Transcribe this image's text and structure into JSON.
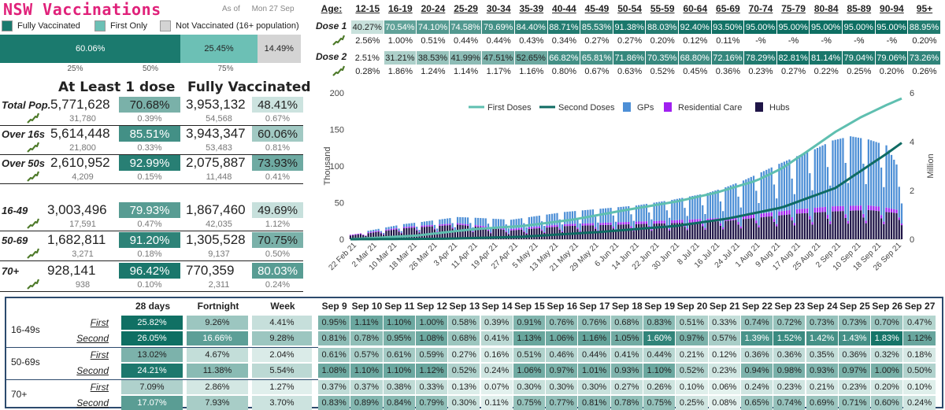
{
  "header": {
    "title": "NSW Vaccinations",
    "as_of_label": "As of",
    "date": "Mon 27 Sep"
  },
  "legend_top": [
    {
      "label": "Fully Vaccinated",
      "color": "#1b7a6e"
    },
    {
      "label": "First Only",
      "color": "#6cc0b5"
    },
    {
      "label": "Not Vaccinated (16+ population)",
      "color": "#d4d4d4"
    }
  ],
  "population_bar": {
    "segments": [
      {
        "label": "60.06%",
        "value": 60.06,
        "color": "#1b7a6e",
        "text_color": "#ffffff"
      },
      {
        "label": "25.45%",
        "value": 25.45,
        "color": "#6cc0b5",
        "text_color": "#222222"
      },
      {
        "label": "14.49%",
        "value": 14.49,
        "color": "#d4d4d4",
        "text_color": "#222222"
      }
    ],
    "ticks": [
      {
        "label": "25%",
        "value": 25
      },
      {
        "label": "50%",
        "value": 50
      },
      {
        "label": "75%",
        "value": 75
      }
    ]
  },
  "summary": {
    "col_headers": [
      "At Least 1 dose",
      "Fully Vaccinated"
    ],
    "rows": [
      {
        "label": "Total Pop.",
        "dose1": "5,771,628",
        "dose1_pct": "70.68%",
        "dose1_pct_val": 70.68,
        "dose1_day": "31,780",
        "dose1_day_pct": "0.39%",
        "full": "3,953,132",
        "full_pct": "48.41%",
        "full_pct_val": 48.41,
        "full_day": "54,568",
        "full_day_pct": "0.67%"
      },
      {
        "label": "Over 16s",
        "dose1": "5,614,448",
        "dose1_pct": "85.51%",
        "dose1_pct_val": 85.51,
        "dose1_day": "21,800",
        "dose1_day_pct": "0.33%",
        "full": "3,943,347",
        "full_pct": "60.06%",
        "full_pct_val": 60.06,
        "full_day": "53,483",
        "full_day_pct": "0.81%"
      },
      {
        "label": "Over 50s",
        "dose1": "2,610,952",
        "dose1_pct": "92.99%",
        "dose1_pct_val": 92.99,
        "dose1_day": "4,209",
        "dose1_day_pct": "0.15%",
        "full": "2,075,887",
        "full_pct": "73.93%",
        "full_pct_val": 73.93,
        "full_day": "11,448",
        "full_day_pct": "0.41%"
      },
      {
        "label": "16-49",
        "dose1": "3,003,496",
        "dose1_pct": "79.93%",
        "dose1_pct_val": 79.93,
        "dose1_day": "17,591",
        "dose1_day_pct": "0.47%",
        "full": "1,867,460",
        "full_pct": "49.69%",
        "full_pct_val": 49.69,
        "full_day": "42,035",
        "full_day_pct": "1.12%"
      },
      {
        "label": "50-69",
        "dose1": "1,682,811",
        "dose1_pct": "91.20%",
        "dose1_pct_val": 91.2,
        "dose1_day": "3,271",
        "dose1_day_pct": "0.18%",
        "full": "1,305,528",
        "full_pct": "70.75%",
        "full_pct_val": 70.75,
        "full_day": "9,137",
        "full_day_pct": "0.50%"
      },
      {
        "label": "70+",
        "dose1": "928,141",
        "dose1_pct": "96.42%",
        "dose1_pct_val": 96.42,
        "dose1_day": "938",
        "dose1_day_pct": "0.10%",
        "full": "770,359",
        "full_pct": "80.03%",
        "full_pct_val": 80.03,
        "full_day": "2,311",
        "full_day_pct": "0.24%"
      }
    ]
  },
  "age_table": {
    "age_label": "Age:",
    "dose1_label": "Dose 1",
    "dose2_label": "Dose 2",
    "ages": [
      "12-15",
      "16-19",
      "20-24",
      "25-29",
      "30-34",
      "35-39",
      "40-44",
      "45-49",
      "50-54",
      "55-59",
      "60-64",
      "65-69",
      "70-74",
      "75-79",
      "80-84",
      "85-89",
      "90-94",
      "95+"
    ],
    "dose1": [
      "40.27%",
      "70.54%",
      "74.10%",
      "74.58%",
      "79.69%",
      "84.40%",
      "88.71%",
      "85.53%",
      "91.38%",
      "88.03%",
      "92.40%",
      "93.50%",
      "95.00%",
      "95.00%",
      "95.00%",
      "95.00%",
      "95.00%",
      "88.95%"
    ],
    "dose1_val": [
      40.27,
      70.54,
      74.1,
      74.58,
      79.69,
      84.4,
      88.71,
      85.53,
      91.38,
      88.03,
      92.4,
      93.5,
      95.0,
      95.0,
      95.0,
      95.0,
      95.0,
      88.95
    ],
    "dose1_daily": [
      "2.56%",
      "1.00%",
      "0.51%",
      "0.44%",
      "0.44%",
      "0.43%",
      "0.34%",
      "0.27%",
      "0.27%",
      "0.20%",
      "0.12%",
      "0.11%",
      "-%",
      "-%",
      "-%",
      "-%",
      "-%",
      "0.20%"
    ],
    "dose2": [
      "2.51%",
      "31.21%",
      "38.53%",
      "41.99%",
      "47.51%",
      "52.65%",
      "66.82%",
      "65.81%",
      "71.86%",
      "70.35%",
      "68.80%",
      "72.16%",
      "78.29%",
      "82.81%",
      "81.14%",
      "79.04%",
      "79.06%",
      "73.26%"
    ],
    "dose2_val": [
      2.51,
      31.21,
      38.53,
      41.99,
      47.51,
      52.65,
      66.82,
      65.81,
      71.86,
      70.35,
      68.8,
      72.16,
      78.29,
      82.81,
      81.14,
      79.04,
      79.06,
      73.26
    ],
    "dose2_daily": [
      "0.28%",
      "1.86%",
      "1.24%",
      "1.14%",
      "1.17%",
      "1.16%",
      "0.80%",
      "0.67%",
      "0.63%",
      "0.52%",
      "0.45%",
      "0.36%",
      "0.23%",
      "0.27%",
      "0.22%",
      "0.25%",
      "0.20%",
      "0.26%"
    ]
  },
  "chart_data": {
    "type": "bar",
    "legend_position": "top",
    "grid": false,
    "ylabel": "Thousand",
    "y2label": "Million",
    "ylim": [
      0,
      200
    ],
    "y2lim": [
      0,
      6
    ],
    "yticks": [
      0,
      50,
      100,
      150,
      200
    ],
    "y2ticks": [
      0,
      2,
      4,
      6
    ],
    "date_range": [
      "2021-02-22",
      "2021-09-26"
    ],
    "x_tick_labels": [
      "22 Feb 21",
      "2 Mar 21",
      "10 Mar 21",
      "18 Mar 21",
      "26 Mar 21",
      "3 Apr 21",
      "11 Apr 21",
      "19 Apr 21",
      "27 Apr 21",
      "5 May 21",
      "13 May 21",
      "21 May 21",
      "29 May 21",
      "6 Jun 21",
      "14 Jun 21",
      "22 Jun 21",
      "30 Jun 21",
      "8 Jul 21",
      "16 Jul 21",
      "24 Jul 21",
      "1 Aug 21",
      "9 Aug 21",
      "17 Aug 21",
      "25 Aug 21",
      "2 Sep 21",
      "10 Sep 21",
      "18 Sep 21",
      "26 Sep 21"
    ],
    "series": [
      {
        "name": "First Doses",
        "kind": "line",
        "axis": "right",
        "color": "#5fbfb0",
        "points": [
          [
            "2021-02-22",
            0.0
          ],
          [
            "2021-03-20",
            0.15
          ],
          [
            "2021-04-10",
            0.4
          ],
          [
            "2021-05-01",
            0.55
          ],
          [
            "2021-05-20",
            0.8
          ],
          [
            "2021-06-10",
            1.2
          ],
          [
            "2021-06-30",
            1.55
          ],
          [
            "2021-07-15",
            1.9
          ],
          [
            "2021-07-31",
            2.4
          ],
          [
            "2021-08-10",
            2.9
          ],
          [
            "2021-08-20",
            3.6
          ],
          [
            "2021-08-31",
            4.4
          ],
          [
            "2021-09-10",
            5.0
          ],
          [
            "2021-09-20",
            5.5
          ],
          [
            "2021-09-26",
            5.77
          ]
        ]
      },
      {
        "name": "Second Doses",
        "kind": "line",
        "axis": "right",
        "color": "#0f6b63",
        "points": [
          [
            "2021-02-22",
            0.0
          ],
          [
            "2021-03-31",
            0.02
          ],
          [
            "2021-04-30",
            0.1
          ],
          [
            "2021-05-31",
            0.3
          ],
          [
            "2021-06-30",
            0.55
          ],
          [
            "2021-07-20",
            0.85
          ],
          [
            "2021-08-10",
            1.3
          ],
          [
            "2021-08-31",
            2.1
          ],
          [
            "2021-09-10",
            2.8
          ],
          [
            "2021-09-20",
            3.5
          ],
          [
            "2021-09-26",
            3.95
          ]
        ]
      },
      {
        "name": "GPs",
        "kind": "bar",
        "axis": "left",
        "color": "#4d8fd6",
        "points": [
          [
            "2021-03-01",
            2
          ],
          [
            "2021-03-22",
            5
          ],
          [
            "2021-04-12",
            10
          ],
          [
            "2021-05-03",
            14
          ],
          [
            "2021-05-24",
            18
          ],
          [
            "2021-06-14",
            22
          ],
          [
            "2021-06-28",
            28
          ],
          [
            "2021-07-12",
            35
          ],
          [
            "2021-07-26",
            48
          ],
          [
            "2021-08-09",
            65
          ],
          [
            "2021-08-23",
            80
          ],
          [
            "2021-08-30",
            90
          ],
          [
            "2021-09-06",
            95
          ],
          [
            "2021-09-13",
            90
          ],
          [
            "2021-09-20",
            85
          ],
          [
            "2021-09-26",
            50
          ]
        ]
      },
      {
        "name": "Residential Care",
        "kind": "bar",
        "axis": "left",
        "color": "#a020f0",
        "points": [
          [
            "2021-02-22",
            1
          ],
          [
            "2021-03-22",
            2
          ],
          [
            "2021-04-26",
            2
          ],
          [
            "2021-05-31",
            3
          ],
          [
            "2021-07-05",
            4
          ],
          [
            "2021-08-02",
            5
          ],
          [
            "2021-08-30",
            7
          ],
          [
            "2021-09-20",
            6
          ],
          [
            "2021-09-26",
            4
          ]
        ]
      },
      {
        "name": "Hubs",
        "kind": "bar",
        "axis": "left",
        "color": "#1f1547",
        "points": [
          [
            "2021-02-22",
            5
          ],
          [
            "2021-03-15",
            15
          ],
          [
            "2021-04-05",
            20
          ],
          [
            "2021-04-26",
            12
          ],
          [
            "2021-05-17",
            18
          ],
          [
            "2021-06-07",
            20
          ],
          [
            "2021-06-28",
            22
          ],
          [
            "2021-07-19",
            25
          ],
          [
            "2021-08-02",
            30
          ],
          [
            "2021-08-16",
            35
          ],
          [
            "2021-08-30",
            38
          ],
          [
            "2021-09-13",
            40
          ],
          [
            "2021-09-26",
            35
          ]
        ]
      }
    ]
  },
  "daily_table": {
    "headers": [
      "28 days",
      "Fortnight",
      "Week"
    ],
    "days": [
      "Sep 9",
      "Sep 10",
      "Sep 11",
      "Sep 12",
      "Sep 13",
      "Sep 14",
      "Sep 15",
      "Sep 16",
      "Sep 17",
      "Sep 18",
      "Sep 19",
      "Sep 20",
      "Sep 21",
      "Sep 22",
      "Sep 23",
      "Sep 24",
      "Sep 25",
      "Sep 26",
      "Sep 27"
    ],
    "groups": [
      {
        "label": "16-49s",
        "rows": [
          {
            "type": "First",
            "summary": [
              "25.82%",
              "9.26%",
              "4.41%"
            ],
            "summary_val": [
              25.82,
              9.26,
              4.41
            ],
            "daily": [
              "0.95%",
              "1.11%",
              "1.10%",
              "1.00%",
              "0.58%",
              "0.39%",
              "0.91%",
              "0.76%",
              "0.76%",
              "0.68%",
              "0.83%",
              "0.51%",
              "0.33%",
              "0.74%",
              "0.72%",
              "0.73%",
              "0.73%",
              "0.70%",
              "0.47%"
            ],
            "daily_val": [
              0.95,
              1.11,
              1.1,
              1.0,
              0.58,
              0.39,
              0.91,
              0.76,
              0.76,
              0.68,
              0.83,
              0.51,
              0.33,
              0.74,
              0.72,
              0.73,
              0.73,
              0.7,
              0.47
            ]
          },
          {
            "type": "Second",
            "summary": [
              "26.05%",
              "16.66%",
              "9.28%"
            ],
            "summary_val": [
              26.05,
              16.66,
              9.28
            ],
            "daily": [
              "0.81%",
              "0.78%",
              "0.95%",
              "1.08%",
              "0.68%",
              "0.41%",
              "1.13%",
              "1.06%",
              "1.16%",
              "1.05%",
              "1.60%",
              "0.97%",
              "0.57%",
              "1.39%",
              "1.52%",
              "1.42%",
              "1.43%",
              "1.83%",
              "1.12%"
            ],
            "daily_val": [
              0.81,
              0.78,
              0.95,
              1.08,
              0.68,
              0.41,
              1.13,
              1.06,
              1.16,
              1.05,
              1.6,
              0.97,
              0.57,
              1.39,
              1.52,
              1.42,
              1.43,
              1.83,
              1.12
            ]
          }
        ]
      },
      {
        "label": "50-69s",
        "rows": [
          {
            "type": "First",
            "summary": [
              "13.02%",
              "4.67%",
              "2.04%"
            ],
            "summary_val": [
              13.02,
              4.67,
              2.04
            ],
            "daily": [
              "0.61%",
              "0.57%",
              "0.61%",
              "0.59%",
              "0.27%",
              "0.16%",
              "0.51%",
              "0.46%",
              "0.44%",
              "0.41%",
              "0.44%",
              "0.21%",
              "0.12%",
              "0.36%",
              "0.36%",
              "0.35%",
              "0.36%",
              "0.32%",
              "0.18%"
            ],
            "daily_val": [
              0.61,
              0.57,
              0.61,
              0.59,
              0.27,
              0.16,
              0.51,
              0.46,
              0.44,
              0.41,
              0.44,
              0.21,
              0.12,
              0.36,
              0.36,
              0.35,
              0.36,
              0.32,
              0.18
            ]
          },
          {
            "type": "Second",
            "summary": [
              "24.21%",
              "11.38%",
              "5.54%"
            ],
            "summary_val": [
              24.21,
              11.38,
              5.54
            ],
            "daily": [
              "1.08%",
              "1.10%",
              "1.10%",
              "1.12%",
              "0.52%",
              "0.24%",
              "1.06%",
              "0.97%",
              "1.01%",
              "0.93%",
              "1.10%",
              "0.52%",
              "0.23%",
              "0.94%",
              "0.98%",
              "0.93%",
              "0.97%",
              "1.00%",
              "0.50%"
            ],
            "daily_val": [
              1.08,
              1.1,
              1.1,
              1.12,
              0.52,
              0.24,
              1.06,
              0.97,
              1.01,
              0.93,
              1.1,
              0.52,
              0.23,
              0.94,
              0.98,
              0.93,
              0.97,
              1.0,
              0.5
            ]
          }
        ]
      },
      {
        "label": "70+",
        "rows": [
          {
            "type": "First",
            "summary": [
              "7.09%",
              "2.86%",
              "1.27%"
            ],
            "summary_val": [
              7.09,
              2.86,
              1.27
            ],
            "daily": [
              "0.37%",
              "0.37%",
              "0.38%",
              "0.33%",
              "0.13%",
              "0.07%",
              "0.30%",
              "0.30%",
              "0.30%",
              "0.27%",
              "0.26%",
              "0.10%",
              "0.06%",
              "0.24%",
              "0.23%",
              "0.21%",
              "0.23%",
              "0.20%",
              "0.10%"
            ],
            "daily_val": [
              0.37,
              0.37,
              0.38,
              0.33,
              0.13,
              0.07,
              0.3,
              0.3,
              0.3,
              0.27,
              0.26,
              0.1,
              0.06,
              0.24,
              0.23,
              0.21,
              0.23,
              0.2,
              0.1
            ]
          },
          {
            "type": "Second",
            "summary": [
              "17.07%",
              "7.93%",
              "3.70%"
            ],
            "summary_val": [
              17.07,
              7.93,
              3.7
            ],
            "daily": [
              "0.83%",
              "0.89%",
              "0.84%",
              "0.79%",
              "0.30%",
              "0.11%",
              "0.75%",
              "0.77%",
              "0.81%",
              "0.78%",
              "0.75%",
              "0.25%",
              "0.08%",
              "0.65%",
              "0.74%",
              "0.69%",
              "0.71%",
              "0.60%",
              "0.24%"
            ],
            "daily_val": [
              0.83,
              0.89,
              0.84,
              0.79,
              0.3,
              0.11,
              0.75,
              0.77,
              0.81,
              0.78,
              0.75,
              0.25,
              0.08,
              0.65,
              0.74,
              0.69,
              0.71,
              0.6,
              0.24
            ]
          }
        ]
      }
    ]
  }
}
